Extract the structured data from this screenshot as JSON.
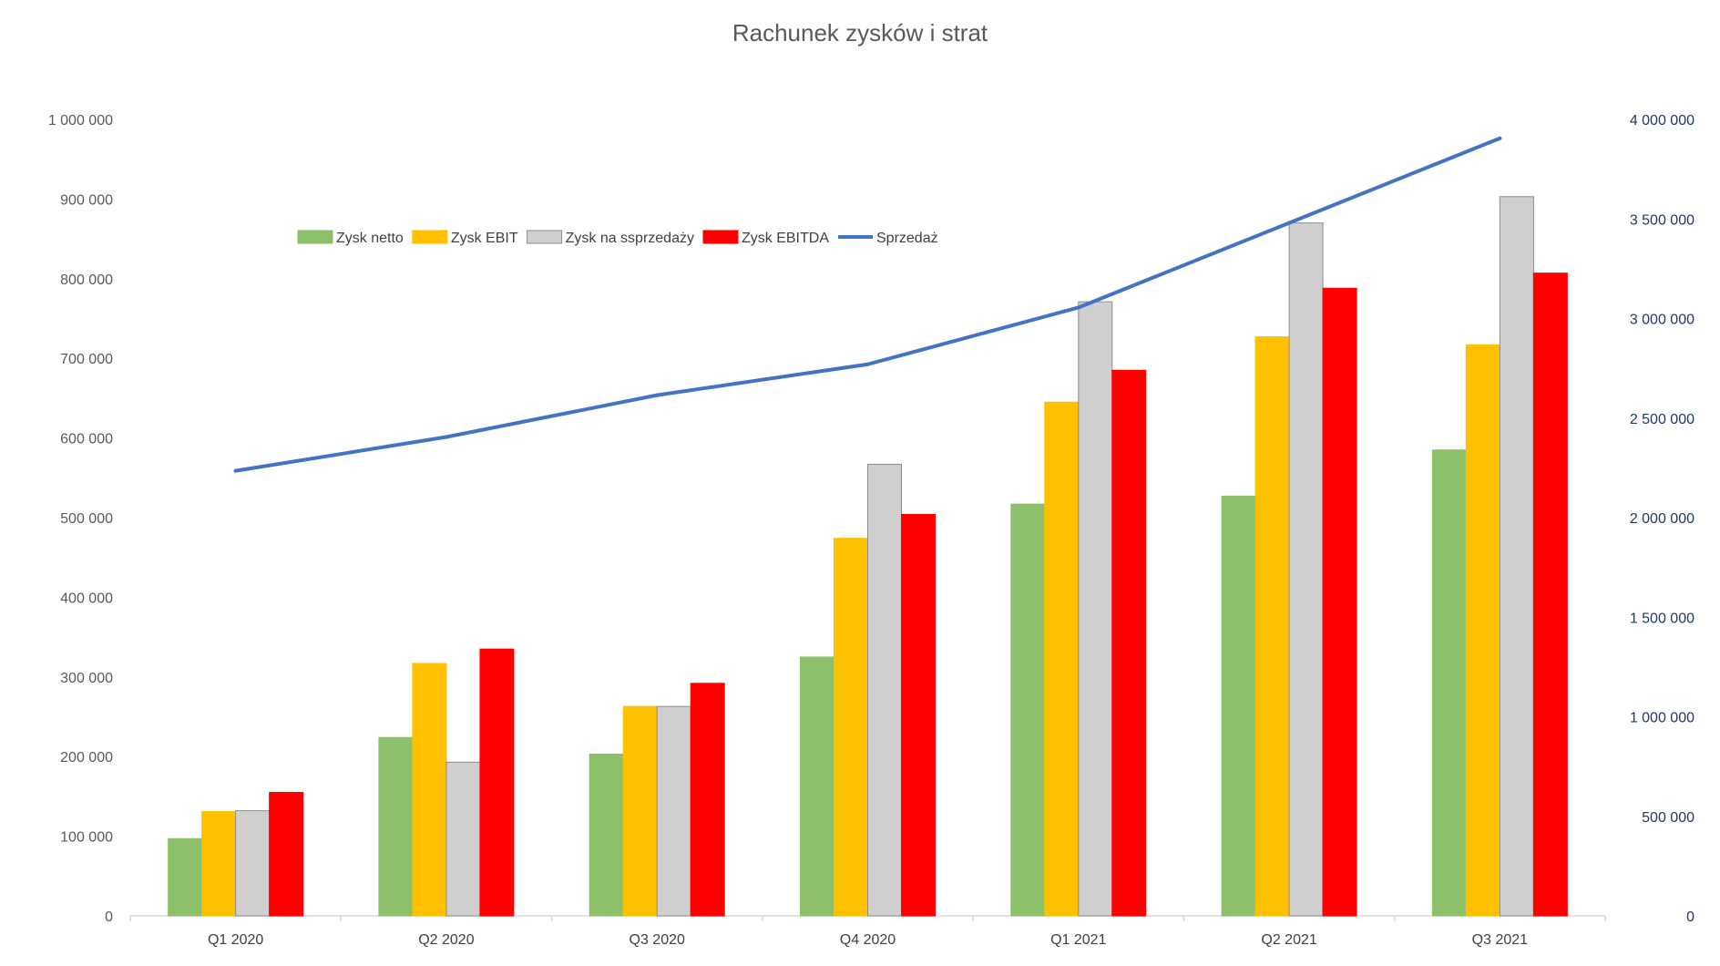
{
  "chart_data": {
    "type": "bar",
    "title": "Rachunek zysków i strat",
    "categories": [
      "Q1 2020",
      "Q2 2020",
      "Q3 2020",
      "Q4 2020",
      "Q1 2021",
      "Q2 2021",
      "Q3 2021"
    ],
    "series": [
      {
        "name": "Zysk netto",
        "type": "bar",
        "axis": "left",
        "color": "#8dc06a",
        "stroke": "#8dc06a",
        "values": [
          97000,
          224000,
          203000,
          325000,
          517000,
          527000,
          585000
        ]
      },
      {
        "name": "Zysk EBIT",
        "type": "bar",
        "axis": "left",
        "color": "#ffc000",
        "stroke": "#ffc000",
        "values": [
          131000,
          317000,
          263000,
          474000,
          645000,
          727000,
          717000
        ]
      },
      {
        "name": "Zysk na ssprzedaży",
        "type": "bar",
        "axis": "left",
        "color": "#d0cece",
        "stroke": "#8c8c8c",
        "values": [
          132000,
          193000,
          263000,
          567000,
          771000,
          870000,
          903000
        ]
      },
      {
        "name": "Zysk EBITDA",
        "type": "bar",
        "axis": "left",
        "color": "#ff0000",
        "stroke": "#ff0000",
        "values": [
          155000,
          335000,
          292000,
          504000,
          685000,
          788000,
          807000
        ]
      },
      {
        "name": "Sprzedaż",
        "type": "line",
        "axis": "right",
        "color": "#4472c4",
        "values": [
          2235000,
          2405000,
          2615000,
          2770000,
          3055000,
          3480000,
          3905000
        ]
      }
    ],
    "y_left": {
      "lim": [
        0,
        1000000
      ],
      "ticks": [
        0,
        100000,
        200000,
        300000,
        400000,
        500000,
        600000,
        700000,
        800000,
        900000,
        1000000
      ],
      "tick_labels": [
        "0",
        "100 000",
        "200 000",
        "300 000",
        "400 000",
        "500 000",
        "600 000",
        "700 000",
        "800 000",
        "900 000",
        "1 000 000"
      ]
    },
    "y_right": {
      "lim": [
        0,
        4000000
      ],
      "ticks": [
        0,
        500000,
        1000000,
        1500000,
        2000000,
        2500000,
        3000000,
        3500000,
        4000000
      ],
      "tick_labels": [
        "0",
        "500 000",
        "1 000 000",
        "1 500 000",
        "2 000 000",
        "2 500 000",
        "3 000 000",
        "3 500 000",
        "4 000 000"
      ]
    },
    "grid": false,
    "legend_position": "top-left, inside plot area"
  }
}
